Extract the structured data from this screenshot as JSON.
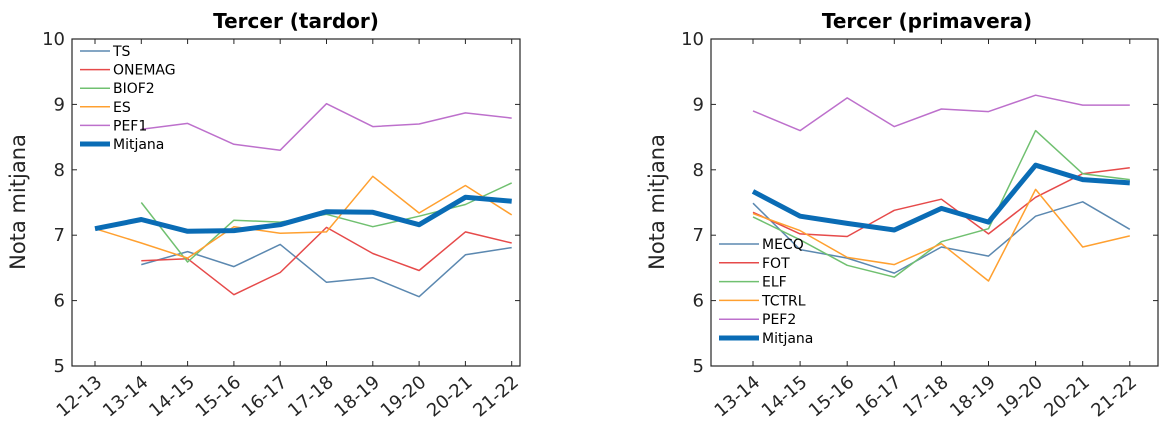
{
  "chart_data": [
    {
      "type": "line",
      "title": "Tercer (tardor)",
      "xlabel": "",
      "ylabel": "Nota mitjana",
      "ylim": [
        5,
        10
      ],
      "yticks": [
        "5",
        "6",
        "7",
        "8",
        "9",
        "10"
      ],
      "categories": [
        "12-13",
        "13-14",
        "14-15",
        "15-16",
        "16-17",
        "17-18",
        "18-19",
        "19-20",
        "20-21",
        "21-22"
      ],
      "legend_position": "top-left",
      "grid": false,
      "series": [
        {
          "name": "TS",
          "color": "#5b88b0",
          "width": 1.5,
          "values": [
            null,
            6.55,
            6.75,
            6.52,
            6.86,
            6.28,
            6.35,
            6.06,
            6.7,
            6.81
          ]
        },
        {
          "name": "ONEMAG",
          "color": "#e64a4a",
          "width": 1.5,
          "values": [
            null,
            6.61,
            6.64,
            6.09,
            6.43,
            7.12,
            6.72,
            6.46,
            7.05,
            6.88
          ]
        },
        {
          "name": "BIOF2",
          "color": "#70c070",
          "width": 1.5,
          "values": [
            null,
            7.5,
            6.59,
            7.23,
            7.2,
            7.32,
            7.13,
            7.29,
            7.47,
            7.8
          ]
        },
        {
          "name": "ES",
          "color": "#ffa030",
          "width": 1.5,
          "values": [
            7.1,
            6.88,
            6.65,
            7.13,
            7.03,
            7.05,
            7.9,
            7.34,
            7.76,
            7.31
          ]
        },
        {
          "name": "PEF1",
          "color": "#bd70cc",
          "width": 1.5,
          "values": [
            null,
            8.62,
            8.71,
            8.39,
            8.3,
            9.01,
            8.66,
            8.7,
            8.87,
            8.79
          ]
        },
        {
          "name": "Mitjana",
          "color": "#0a6cb5",
          "width": 5,
          "values": [
            7.1,
            7.24,
            7.06,
            7.07,
            7.16,
            7.36,
            7.35,
            7.16,
            7.58,
            7.52
          ]
        }
      ]
    },
    {
      "type": "line",
      "title": "Tercer (primavera)",
      "xlabel": "",
      "ylabel": "Nota mitjana",
      "ylim": [
        5,
        10
      ],
      "yticks": [
        "5",
        "6",
        "7",
        "8",
        "9",
        "10"
      ],
      "categories": [
        "13-14",
        "14-15",
        "15-16",
        "16-17",
        "17-18",
        "18-19",
        "19-20",
        "20-21",
        "21-22"
      ],
      "legend_position": "bottom-left",
      "grid": false,
      "series": [
        {
          "name": "MECQ",
          "color": "#5b88b0",
          "width": 1.5,
          "values": [
            7.49,
            6.78,
            6.65,
            6.42,
            6.82,
            6.68,
            7.29,
            7.51,
            7.09
          ]
        },
        {
          "name": "FOT",
          "color": "#e64a4a",
          "width": 1.5,
          "values": [
            7.35,
            7.02,
            6.98,
            7.38,
            7.55,
            7.02,
            7.58,
            7.94,
            8.03
          ]
        },
        {
          "name": "ELF",
          "color": "#70c070",
          "width": 1.5,
          "values": [
            7.28,
            6.93,
            6.54,
            6.36,
            6.9,
            7.1,
            8.6,
            7.94,
            7.85
          ]
        },
        {
          "name": "TCTRL",
          "color": "#ffa030",
          "width": 1.5,
          "values": [
            7.33,
            7.07,
            6.66,
            6.55,
            6.87,
            6.3,
            7.7,
            6.82,
            6.99
          ]
        },
        {
          "name": "PEF2",
          "color": "#bd70cc",
          "width": 1.5,
          "values": [
            8.9,
            8.6,
            9.1,
            8.66,
            8.93,
            8.89,
            9.14,
            8.99,
            8.99
          ]
        },
        {
          "name": "Mitjana",
          "color": "#0a6cb5",
          "width": 5,
          "values": [
            7.67,
            7.29,
            7.18,
            7.08,
            7.41,
            7.2,
            8.07,
            7.85,
            7.8
          ]
        }
      ]
    }
  ]
}
